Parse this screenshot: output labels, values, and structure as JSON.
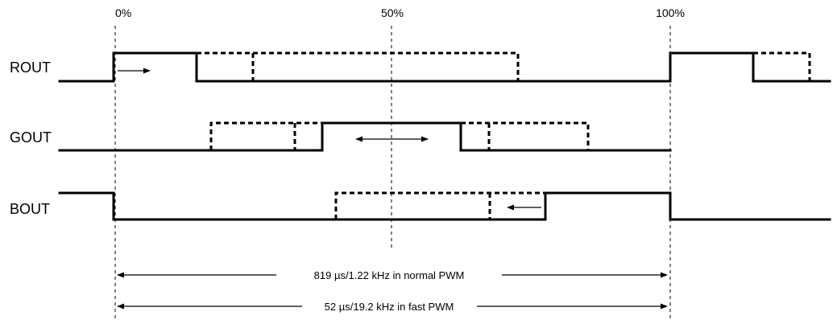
{
  "markers": {
    "start": "0%",
    "middle": "50%",
    "end": "100%"
  },
  "signals": {
    "rout": "ROUT",
    "gout": "GOUT",
    "bout": "BOUT"
  },
  "periods": {
    "normal": "819 µs/1.22 kHz in normal PWM",
    "fast": "52 µs/19.2 kHz in fast PWM"
  }
}
